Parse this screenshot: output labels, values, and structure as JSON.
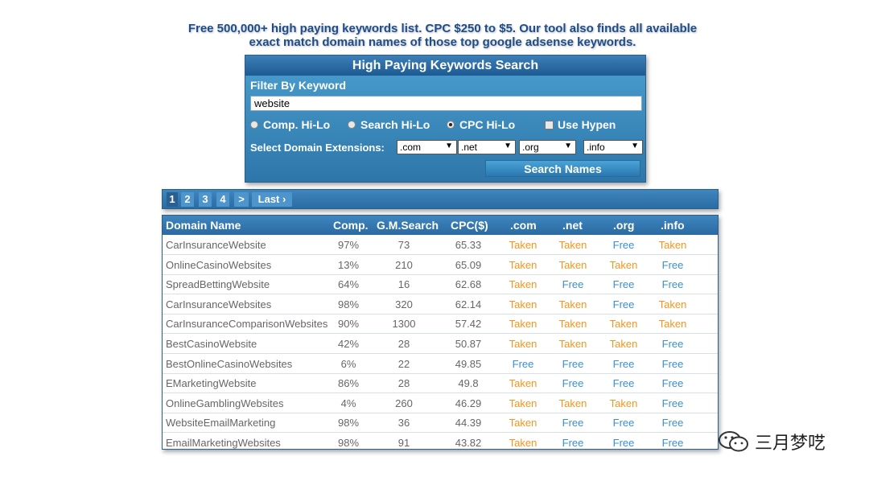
{
  "headline": {
    "line1": "Free 500,000+ high paying keywords list. CPC $250 to $5. Our tool also finds all available",
    "line2": "exact match domain names of those top google adsense keywords."
  },
  "panel": {
    "title": "High Paying Keywords Search",
    "filter_label": "Filter By Keyword",
    "keyword_value": "website",
    "radios": [
      {
        "label": "Comp. Hi-Lo",
        "checked": false
      },
      {
        "label": "Search Hi-Lo",
        "checked": false
      },
      {
        "label": "CPC Hi-Lo",
        "checked": true
      }
    ],
    "hyphen_label": "Use Hypen",
    "ext_label": "Select Domain Extensions:",
    "extensions": [
      ".com",
      ".net",
      ".org",
      ".info"
    ],
    "search_button": "Search Names"
  },
  "pager": {
    "pages": [
      "1",
      "2",
      "3",
      "4",
      ">",
      "Last ›"
    ],
    "active": "1"
  },
  "table": {
    "headers": [
      "Domain Name",
      "Comp.",
      "G.M.Search",
      "CPC($)",
      ".com",
      ".net",
      ".org",
      ".info"
    ],
    "rows": [
      [
        "CarInsuranceWebsite",
        "97%",
        "73",
        "65.33",
        "Taken",
        "Taken",
        "Free",
        "Taken"
      ],
      [
        "OnlineCasinoWebsites",
        "13%",
        "210",
        "65.09",
        "Taken",
        "Taken",
        "Taken",
        "Free"
      ],
      [
        "SpreadBettingWebsite",
        "64%",
        "16",
        "62.68",
        "Taken",
        "Free",
        "Free",
        "Free"
      ],
      [
        "CarInsuranceWebsites",
        "98%",
        "320",
        "62.14",
        "Taken",
        "Taken",
        "Free",
        "Taken"
      ],
      [
        "CarInsuranceComparisonWebsites",
        "90%",
        "1300",
        "57.42",
        "Taken",
        "Taken",
        "Taken",
        "Taken"
      ],
      [
        "BestCasinoWebsite",
        "42%",
        "28",
        "50.87",
        "Taken",
        "Taken",
        "Taken",
        "Free"
      ],
      [
        "BestOnlineCasinoWebsites",
        "6%",
        "22",
        "49.85",
        "Free",
        "Free",
        "Free",
        "Free"
      ],
      [
        "EMarketingWebsite",
        "86%",
        "28",
        "49.8",
        "Taken",
        "Free",
        "Free",
        "Free"
      ],
      [
        "OnlineGamblingWebsites",
        "4%",
        "260",
        "46.29",
        "Taken",
        "Taken",
        "Taken",
        "Free"
      ],
      [
        "WebsiteEmailMarketing",
        "98%",
        "36",
        "44.39",
        "Taken",
        "Free",
        "Free",
        "Free"
      ],
      [
        "EmailMarketingWebsites",
        "98%",
        "91",
        "43.82",
        "Taken",
        "Free",
        "Free",
        "Free"
      ]
    ]
  },
  "colors": {
    "taken": "#f7941d",
    "free": "#3a8fd1",
    "accent": "#2a6ba3"
  },
  "watermark": {
    "text": "三月梦呓",
    "icon": "wechat-icon"
  }
}
